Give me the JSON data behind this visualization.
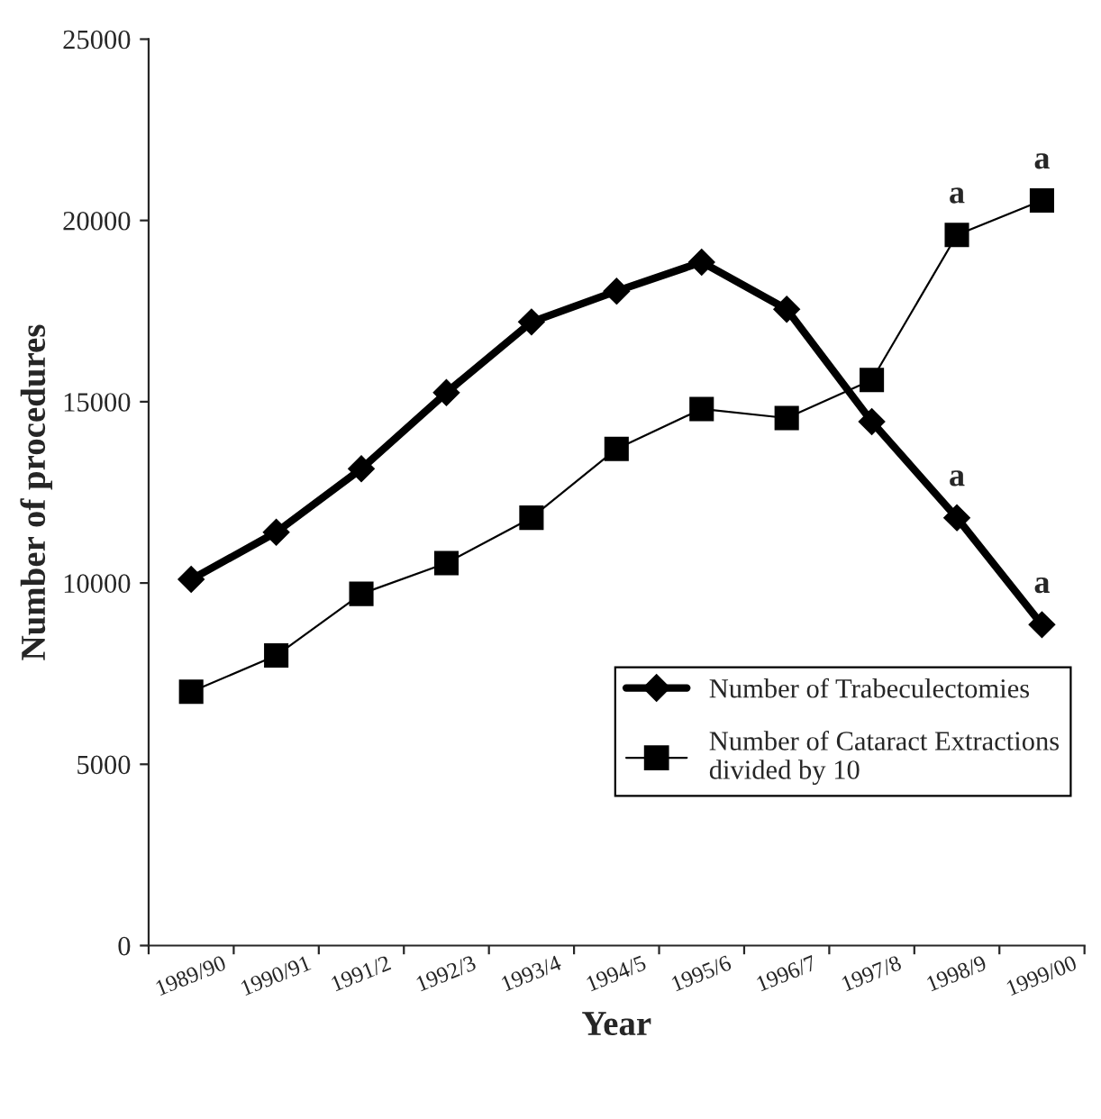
{
  "chart_data": {
    "type": "line",
    "xlabel": "Year",
    "ylabel": "Number of procedures",
    "categories": [
      "1989/90",
      "1990/91",
      "1991/2",
      "1992/3",
      "1993/4",
      "1994/5",
      "1995/6",
      "1996/7",
      "1997/8",
      "1998/9",
      "1999/00"
    ],
    "series": [
      {
        "name": "Number of Trabeculectomies",
        "color": "#000000",
        "marker": "diamond",
        "values": [
          10100,
          11400,
          13150,
          15250,
          17200,
          18050,
          18850,
          17550,
          14450,
          11800,
          8850
        ]
      },
      {
        "name": "Number of Cataract Extractions divided by 10",
        "color": "#000000",
        "marker": "square",
        "values": [
          7000,
          8000,
          9700,
          10550,
          11800,
          13700,
          14800,
          14550,
          15600,
          19600,
          20550
        ]
      }
    ],
    "ylim": [
      0,
      25000
    ],
    "yticks": [
      0,
      5000,
      10000,
      15000,
      20000,
      25000
    ],
    "grid": false,
    "legend": "bottom right",
    "line_style": "solid",
    "annotations": [
      {
        "text": "a",
        "x": "1998/9",
        "y": 11800
      },
      {
        "text": "a",
        "x": "1999/00",
        "y": 8850
      },
      {
        "text": "a",
        "x": "1998/9",
        "y": 19600
      },
      {
        "text": "a",
        "x": "1999/00",
        "y": 20550
      }
    ]
  }
}
